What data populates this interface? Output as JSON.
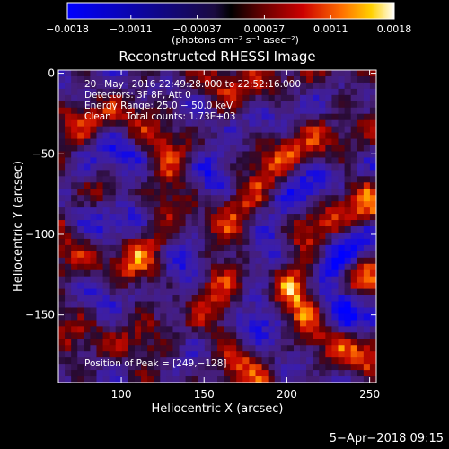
{
  "chart_data": {
    "type": "heatmap",
    "title": "Reconstructed RHESSI Image",
    "xlabel": "Heliocentric X (arcsec)",
    "ylabel": "Heliocentric Y (arcsec)",
    "xlim": [
      62,
      254
    ],
    "ylim": [
      -192,
      2
    ],
    "xticks": [
      100,
      150,
      200,
      250
    ],
    "yticks": [
      0,
      -50,
      -100,
      -150
    ],
    "xtick_labels": [
      "100",
      "150",
      "200",
      "250"
    ],
    "ytick_labels": [
      "0",
      "−50",
      "−100",
      "−150"
    ],
    "colorbar": {
      "range": [
        -0.0018,
        0.0018
      ],
      "ticks": [
        -0.0018,
        -0.0011,
        -0.00037,
        0.00037,
        0.0011,
        0.0018
      ],
      "tick_labels": [
        "−0.0018",
        "−0.0011",
        "−0.00037",
        "0.00037",
        "0.0011",
        "0.0018"
      ],
      "units_label": "(photons cm⁻² s⁻¹ asec⁻²)"
    },
    "annotations": [
      "20−May−2016 22:49:28.000 to 22:52:16.000",
      "Detectors: 3F 8F, Att 0",
      "Energy Range: 25.0 − 50.0 keV",
      "Clean     Total counts: 1.73E+03"
    ],
    "peak_label": "Position of Peak = [249,−128]",
    "peak": [
      249,
      -128
    ]
  },
  "footer": {
    "date": "5−Apr−2018 09:15"
  }
}
